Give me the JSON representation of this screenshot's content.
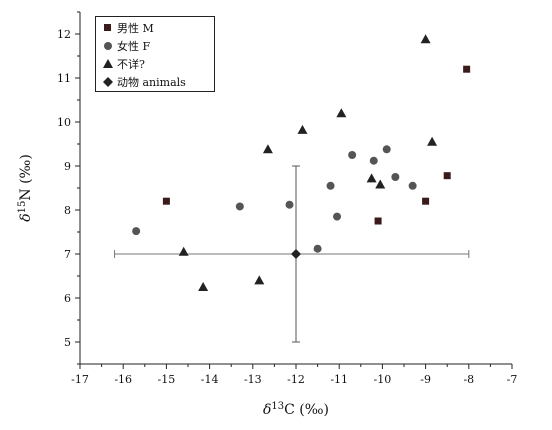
{
  "chart_data": {
    "type": "scatter",
    "title": "",
    "xlabel_parts": {
      "prefix": "δ",
      "sup": "13",
      "main": "C (‰)"
    },
    "ylabel_parts": {
      "prefix": "δ",
      "sup": "15",
      "main": "N (‰)"
    },
    "xlim": [
      -17,
      -7
    ],
    "ylim": [
      4.5,
      12.5
    ],
    "x_ticks": [
      -17,
      -16,
      -15,
      -14,
      -13,
      -12,
      -11,
      -10,
      -9,
      -8,
      -7
    ],
    "y_ticks": [
      5,
      6,
      7,
      8,
      9,
      10,
      11,
      12
    ],
    "grid": false,
    "legend_position": "top-left",
    "series": [
      {
        "name": "男性 M",
        "marker": "square",
        "color": "#3a1a1a",
        "points": [
          [
            -15.0,
            8.2
          ],
          [
            -10.1,
            7.75
          ],
          [
            -9.0,
            8.2
          ],
          [
            -8.5,
            8.78
          ],
          [
            -8.05,
            11.2
          ]
        ]
      },
      {
        "name": "女性 F",
        "marker": "circle",
        "color": "#555555",
        "points": [
          [
            -15.7,
            7.52
          ],
          [
            -13.3,
            8.08
          ],
          [
            -12.15,
            8.12
          ],
          [
            -11.5,
            7.12
          ],
          [
            -11.2,
            8.55
          ],
          [
            -11.05,
            7.85
          ],
          [
            -10.7,
            9.25
          ],
          [
            -10.2,
            9.12
          ],
          [
            -9.9,
            9.38
          ],
          [
            -9.7,
            8.75
          ],
          [
            -9.3,
            8.55
          ]
        ]
      },
      {
        "name": "不详?",
        "marker": "triangle",
        "color": "#222222",
        "points": [
          [
            -14.6,
            7.05
          ],
          [
            -14.15,
            6.25
          ],
          [
            -12.85,
            6.4
          ],
          [
            -12.65,
            9.38
          ],
          [
            -11.85,
            9.82
          ],
          [
            -10.95,
            10.2
          ],
          [
            -10.25,
            8.72
          ],
          [
            -10.05,
            8.58
          ],
          [
            -9.0,
            11.88
          ],
          [
            -8.85,
            9.55
          ]
        ]
      },
      {
        "name": "动物 animals",
        "marker": "diamond",
        "color": "#222222",
        "points": [
          [
            -12.0,
            7.0
          ]
        ],
        "error_x": [
          -16.2,
          -8.0
        ],
        "error_y": [
          5.0,
          9.0
        ]
      }
    ]
  }
}
